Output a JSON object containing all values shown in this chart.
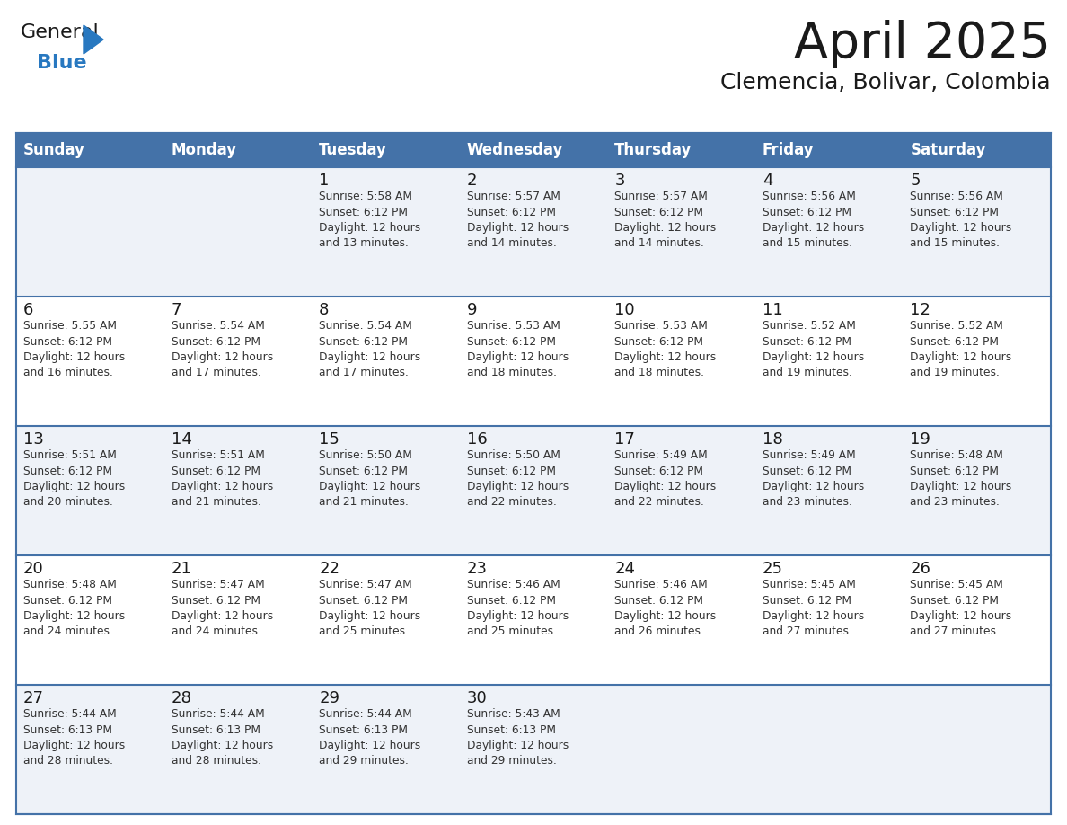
{
  "title": "April 2025",
  "subtitle": "Clemencia, Bolivar, Colombia",
  "days_of_week": [
    "Sunday",
    "Monday",
    "Tuesday",
    "Wednesday",
    "Thursday",
    "Friday",
    "Saturday"
  ],
  "header_bg": "#4472a8",
  "header_text": "#ffffff",
  "row_bg_odd": "#eef2f8",
  "row_bg_even": "#ffffff",
  "border_color": "#4472a8",
  "row_line_color": "#4472a8",
  "title_color": "#1a1a1a",
  "subtitle_color": "#1a1a1a",
  "day_number_color": "#1a1a1a",
  "cell_text_color": "#333333",
  "logo_general_color": "#1a1a1a",
  "logo_blue_color": "#2878c0",
  "weeks": [
    [
      {
        "day": null,
        "text": ""
      },
      {
        "day": null,
        "text": ""
      },
      {
        "day": 1,
        "text": "Sunrise: 5:58 AM\nSunset: 6:12 PM\nDaylight: 12 hours\nand 13 minutes."
      },
      {
        "day": 2,
        "text": "Sunrise: 5:57 AM\nSunset: 6:12 PM\nDaylight: 12 hours\nand 14 minutes."
      },
      {
        "day": 3,
        "text": "Sunrise: 5:57 AM\nSunset: 6:12 PM\nDaylight: 12 hours\nand 14 minutes."
      },
      {
        "day": 4,
        "text": "Sunrise: 5:56 AM\nSunset: 6:12 PM\nDaylight: 12 hours\nand 15 minutes."
      },
      {
        "day": 5,
        "text": "Sunrise: 5:56 AM\nSunset: 6:12 PM\nDaylight: 12 hours\nand 15 minutes."
      }
    ],
    [
      {
        "day": 6,
        "text": "Sunrise: 5:55 AM\nSunset: 6:12 PM\nDaylight: 12 hours\nand 16 minutes."
      },
      {
        "day": 7,
        "text": "Sunrise: 5:54 AM\nSunset: 6:12 PM\nDaylight: 12 hours\nand 17 minutes."
      },
      {
        "day": 8,
        "text": "Sunrise: 5:54 AM\nSunset: 6:12 PM\nDaylight: 12 hours\nand 17 minutes."
      },
      {
        "day": 9,
        "text": "Sunrise: 5:53 AM\nSunset: 6:12 PM\nDaylight: 12 hours\nand 18 minutes."
      },
      {
        "day": 10,
        "text": "Sunrise: 5:53 AM\nSunset: 6:12 PM\nDaylight: 12 hours\nand 18 minutes."
      },
      {
        "day": 11,
        "text": "Sunrise: 5:52 AM\nSunset: 6:12 PM\nDaylight: 12 hours\nand 19 minutes."
      },
      {
        "day": 12,
        "text": "Sunrise: 5:52 AM\nSunset: 6:12 PM\nDaylight: 12 hours\nand 19 minutes."
      }
    ],
    [
      {
        "day": 13,
        "text": "Sunrise: 5:51 AM\nSunset: 6:12 PM\nDaylight: 12 hours\nand 20 minutes."
      },
      {
        "day": 14,
        "text": "Sunrise: 5:51 AM\nSunset: 6:12 PM\nDaylight: 12 hours\nand 21 minutes."
      },
      {
        "day": 15,
        "text": "Sunrise: 5:50 AM\nSunset: 6:12 PM\nDaylight: 12 hours\nand 21 minutes."
      },
      {
        "day": 16,
        "text": "Sunrise: 5:50 AM\nSunset: 6:12 PM\nDaylight: 12 hours\nand 22 minutes."
      },
      {
        "day": 17,
        "text": "Sunrise: 5:49 AM\nSunset: 6:12 PM\nDaylight: 12 hours\nand 22 minutes."
      },
      {
        "day": 18,
        "text": "Sunrise: 5:49 AM\nSunset: 6:12 PM\nDaylight: 12 hours\nand 23 minutes."
      },
      {
        "day": 19,
        "text": "Sunrise: 5:48 AM\nSunset: 6:12 PM\nDaylight: 12 hours\nand 23 minutes."
      }
    ],
    [
      {
        "day": 20,
        "text": "Sunrise: 5:48 AM\nSunset: 6:12 PM\nDaylight: 12 hours\nand 24 minutes."
      },
      {
        "day": 21,
        "text": "Sunrise: 5:47 AM\nSunset: 6:12 PM\nDaylight: 12 hours\nand 24 minutes."
      },
      {
        "day": 22,
        "text": "Sunrise: 5:47 AM\nSunset: 6:12 PM\nDaylight: 12 hours\nand 25 minutes."
      },
      {
        "day": 23,
        "text": "Sunrise: 5:46 AM\nSunset: 6:12 PM\nDaylight: 12 hours\nand 25 minutes."
      },
      {
        "day": 24,
        "text": "Sunrise: 5:46 AM\nSunset: 6:12 PM\nDaylight: 12 hours\nand 26 minutes."
      },
      {
        "day": 25,
        "text": "Sunrise: 5:45 AM\nSunset: 6:12 PM\nDaylight: 12 hours\nand 27 minutes."
      },
      {
        "day": 26,
        "text": "Sunrise: 5:45 AM\nSunset: 6:12 PM\nDaylight: 12 hours\nand 27 minutes."
      }
    ],
    [
      {
        "day": 27,
        "text": "Sunrise: 5:44 AM\nSunset: 6:13 PM\nDaylight: 12 hours\nand 28 minutes."
      },
      {
        "day": 28,
        "text": "Sunrise: 5:44 AM\nSunset: 6:13 PM\nDaylight: 12 hours\nand 28 minutes."
      },
      {
        "day": 29,
        "text": "Sunrise: 5:44 AM\nSunset: 6:13 PM\nDaylight: 12 hours\nand 29 minutes."
      },
      {
        "day": 30,
        "text": "Sunrise: 5:43 AM\nSunset: 6:13 PM\nDaylight: 12 hours\nand 29 minutes."
      },
      {
        "day": null,
        "text": ""
      },
      {
        "day": null,
        "text": ""
      },
      {
        "day": null,
        "text": ""
      }
    ]
  ]
}
